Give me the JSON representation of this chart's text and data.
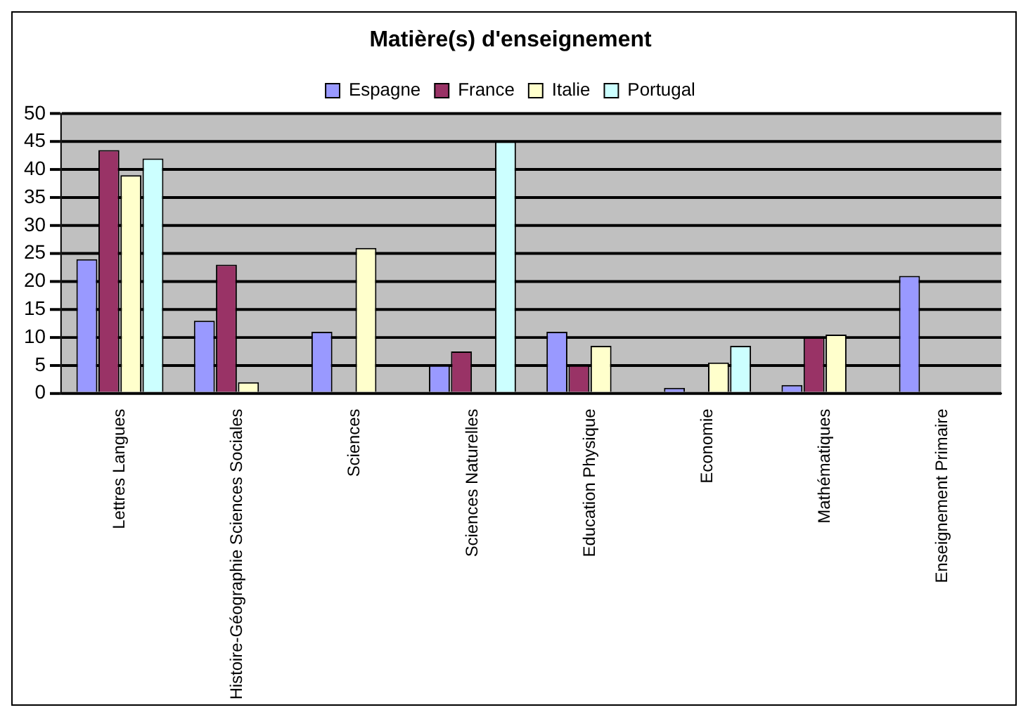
{
  "chart_data": {
    "type": "bar",
    "title": "Matière(s) d'enseignement",
    "categories": [
      "Lettres Langues",
      "Histoire-Géographie Sciences Sociales",
      "Sciences",
      "Sciences Naturelles",
      "Education Physique",
      "Economie",
      "Mathématiques",
      "Enseignement Primaire"
    ],
    "series": [
      {
        "name": "Espagne",
        "color": "#9999ff",
        "values": [
          24,
          13,
          11,
          5,
          11,
          1,
          1.5,
          21
        ]
      },
      {
        "name": "France",
        "color": "#993366",
        "values": [
          43.5,
          23,
          null,
          7.5,
          5,
          null,
          10,
          null
        ]
      },
      {
        "name": "Italie",
        "color": "#ffffcc",
        "values": [
          39,
          2,
          26,
          null,
          8.5,
          5.5,
          10.5,
          null
        ]
      },
      {
        "name": "Portugal",
        "color": "#ccffff",
        "values": [
          42,
          null,
          null,
          45,
          null,
          8.5,
          null,
          null
        ]
      }
    ],
    "ylim": [
      0,
      50
    ],
    "yticks": [
      0,
      5,
      10,
      15,
      20,
      25,
      30,
      35,
      40,
      45,
      50
    ],
    "grid": "y",
    "legend": "top"
  }
}
